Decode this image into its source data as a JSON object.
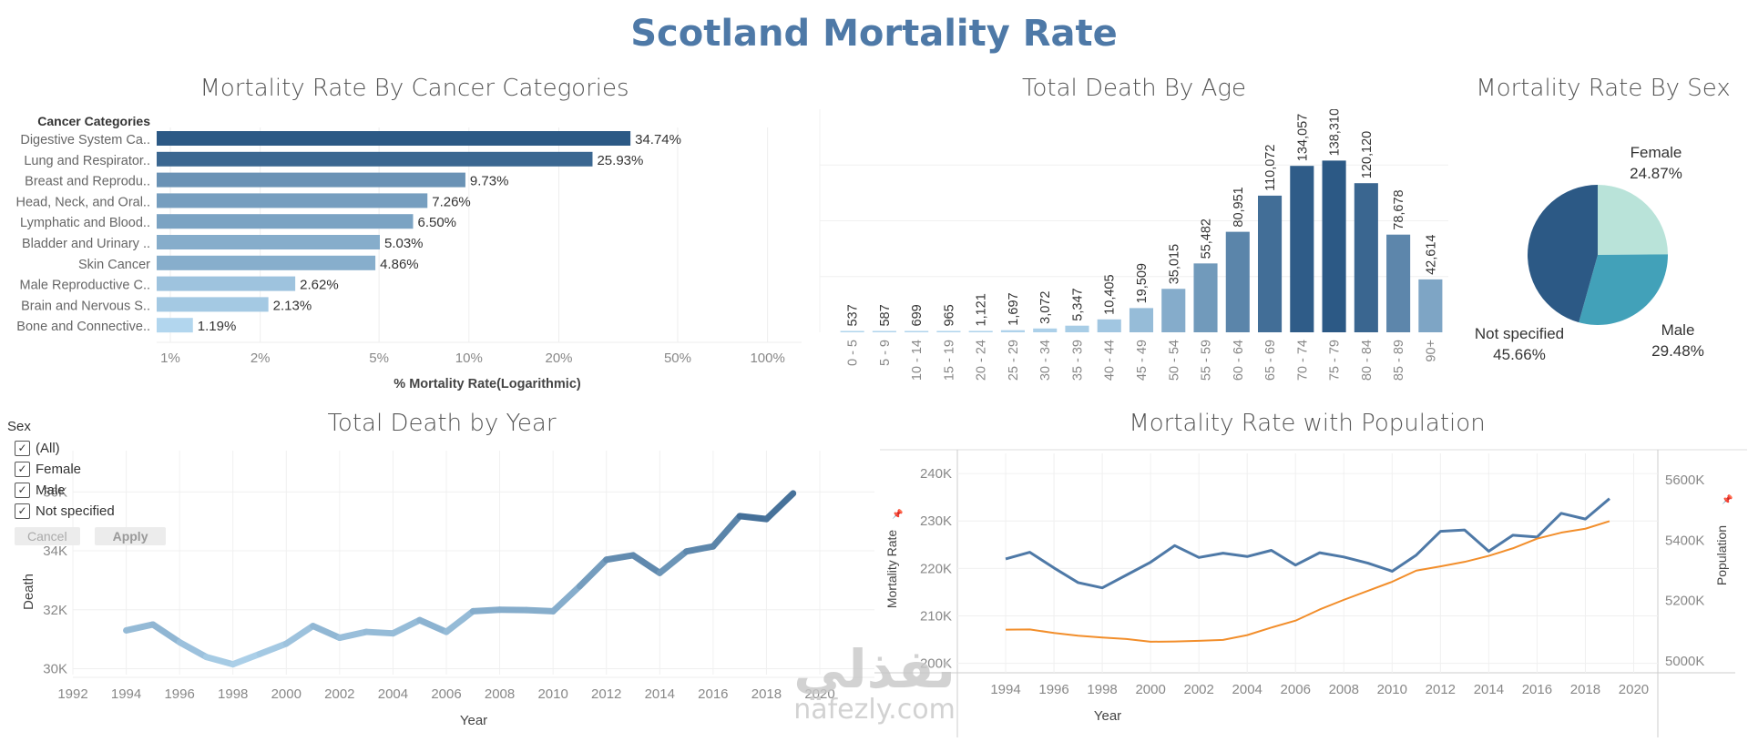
{
  "dashboard": {
    "title": "Scotland Mortality Rate"
  },
  "colors": {
    "title": "#4e79a7",
    "blue_dark": "#2c5985",
    "blue_light": "#b2d6ee",
    "orange": "#f28e2b",
    "female": "#b9e3d9",
    "male": "#42a1b9",
    "not_specified": "#2c5985"
  },
  "filter": {
    "title": "Sex",
    "options": [
      {
        "label": "(All)",
        "checked": true
      },
      {
        "label": "Female",
        "checked": true
      },
      {
        "label": "Male",
        "checked": true
      },
      {
        "label": "Not specified",
        "checked": true
      }
    ],
    "cancel_label": "Cancel",
    "apply_label": "Apply"
  },
  "watermark": {
    "arabic": "نفذلي",
    "latin": "nafezly.com"
  },
  "chart_data": [
    {
      "id": "cancer",
      "type": "bar",
      "orientation": "horizontal",
      "title": "Mortality Rate By Cancer Categories",
      "row_header": "Cancer Categories",
      "xlabel": "% Mortality Rate(Logarithmic)",
      "xscale": "log",
      "xlim": [
        0.9,
        130
      ],
      "xticks": [
        1,
        2,
        5,
        10,
        20,
        50,
        100
      ],
      "xtick_labels": [
        "1%",
        "2%",
        "5%",
        "10%",
        "20%",
        "50%",
        "100%"
      ],
      "categories": [
        "Digestive System Ca..",
        "Lung and Respirator..",
        "Breast and Reprodu..",
        "Head, Neck, and Oral..",
        "Lymphatic and Blood..",
        "Bladder and Urinary ..",
        "Skin Cancer",
        "Male Reproductive C..",
        "Brain and Nervous S..",
        "Bone and Connective.."
      ],
      "values": [
        34.74,
        25.93,
        9.73,
        7.26,
        6.5,
        5.03,
        4.86,
        2.62,
        2.13,
        1.19
      ],
      "value_labels": [
        "34.74%",
        "25.93%",
        "9.73%",
        "7.26%",
        "6.50%",
        "5.03%",
        "4.86%",
        "2.62%",
        "2.13%",
        "1.19%"
      ],
      "grid": true
    },
    {
      "id": "age",
      "type": "bar",
      "title": "Total Death By Age",
      "categories": [
        "0 - 5",
        "5 - 9",
        "10 - 14",
        "15 - 19",
        "20 - 24",
        "25 - 29",
        "30 - 34",
        "35 - 39",
        "40 - 44",
        "45 - 49",
        "50 - 54",
        "55 - 59",
        "60 - 64",
        "65 - 69",
        "70 - 74",
        "75 - 79",
        "80 - 84",
        "85 - 89",
        "90+"
      ],
      "values": [
        537,
        587,
        699,
        965,
        1121,
        1697,
        3072,
        5347,
        10405,
        19509,
        35015,
        55482,
        80951,
        110072,
        134057,
        138310,
        120120,
        78678,
        42614
      ],
      "value_labels": [
        "537",
        "587",
        "699",
        "965",
        "1,121",
        "1,697",
        "3,072",
        "5,347",
        "10,405",
        "19,509",
        "35,015",
        "55,482",
        "80,951",
        "110,072",
        "134,057",
        "138,310",
        "120,120",
        "78,678",
        "42,614"
      ],
      "ylim": [
        0,
        200000
      ],
      "grid": true
    },
    {
      "id": "sex",
      "type": "pie",
      "title": "Mortality Rate By Sex",
      "labels": [
        "Female",
        "Male",
        "Not specified"
      ],
      "values": [
        24.87,
        29.48,
        45.66
      ],
      "value_labels": [
        "24.87%",
        "29.48%",
        "45.66%"
      ]
    },
    {
      "id": "year",
      "type": "line",
      "title": "Total Death by Year",
      "xlabel": "Year",
      "ylabel": "Death",
      "xlim": [
        1992,
        2020
      ],
      "xticks": [
        1992,
        1994,
        1996,
        1998,
        2000,
        2002,
        2004,
        2006,
        2008,
        2010,
        2012,
        2014,
        2016,
        2018,
        2020
      ],
      "ylim": [
        29800,
        37400
      ],
      "yticks": [
        30000,
        32000,
        34000,
        36000
      ],
      "ytick_labels": [
        "30K",
        "32K",
        "34K",
        "36K"
      ],
      "x": [
        1994,
        1995,
        1996,
        1997,
        1998,
        1999,
        2000,
        2001,
        2002,
        2003,
        2004,
        2005,
        2006,
        2007,
        2008,
        2009,
        2010,
        2011,
        2012,
        2013,
        2014,
        2015,
        2016,
        2017,
        2018,
        2019
      ],
      "values": [
        31300,
        31500,
        30900,
        30400,
        30150,
        30500,
        30850,
        31450,
        31050,
        31250,
        31200,
        31650,
        31250,
        31950,
        32000,
        31990,
        31950,
        32800,
        33700,
        33850,
        33250,
        33980,
        34150,
        35180,
        35080,
        35950
      ],
      "grid": true
    },
    {
      "id": "population",
      "type": "line",
      "title": "Mortality Rate with Population",
      "xlabel": "Year",
      "xlim": [
        1992,
        2021
      ],
      "xticks": [
        1994,
        1996,
        1998,
        2000,
        2002,
        2004,
        2006,
        2008,
        2010,
        2012,
        2014,
        2016,
        2018,
        2020
      ],
      "y_left": {
        "label": "Mortality Rate",
        "lim": [
          198000,
          245000
        ],
        "ticks": [
          200000,
          210000,
          220000,
          230000,
          240000
        ],
        "tick_labels": [
          "200K",
          "210K",
          "220K",
          "230K",
          "240K"
        ]
      },
      "y_right": {
        "label": "Population",
        "lim": [
          4960000,
          5700000
        ],
        "ticks": [
          5000000,
          5200000,
          5400000,
          5600000
        ],
        "tick_labels": [
          "5000K",
          "5200K",
          "5400K",
          "5600K"
        ]
      },
      "x": [
        1994,
        1995,
        1996,
        1997,
        1998,
        1999,
        2000,
        2001,
        2002,
        2003,
        2004,
        2005,
        2006,
        2007,
        2008,
        2009,
        2010,
        2011,
        2012,
        2013,
        2014,
        2015,
        2016,
        2017,
        2018,
        2019
      ],
      "series": [
        {
          "name": "Mortality Rate",
          "axis": "left",
          "color": "#4e79a7",
          "values": [
            222000,
            223400,
            220100,
            217000,
            215900,
            218600,
            221300,
            224800,
            222300,
            223200,
            222500,
            223800,
            220700,
            223300,
            222400,
            221100,
            219400,
            222800,
            227800,
            228100,
            223600,
            227000,
            226600,
            231600,
            230400,
            234700
          ]
        },
        {
          "name": "Population",
          "axis": "right",
          "color": "#f28e2b",
          "values": [
            5103000,
            5104000,
            5092000,
            5083000,
            5077000,
            5072000,
            5063000,
            5064000,
            5066000,
            5069000,
            5085000,
            5110000,
            5133000,
            5170000,
            5202000,
            5232000,
            5262000,
            5299000,
            5313000,
            5328000,
            5348000,
            5373000,
            5405000,
            5425000,
            5438000,
            5463000
          ]
        }
      ],
      "grid": true
    }
  ]
}
